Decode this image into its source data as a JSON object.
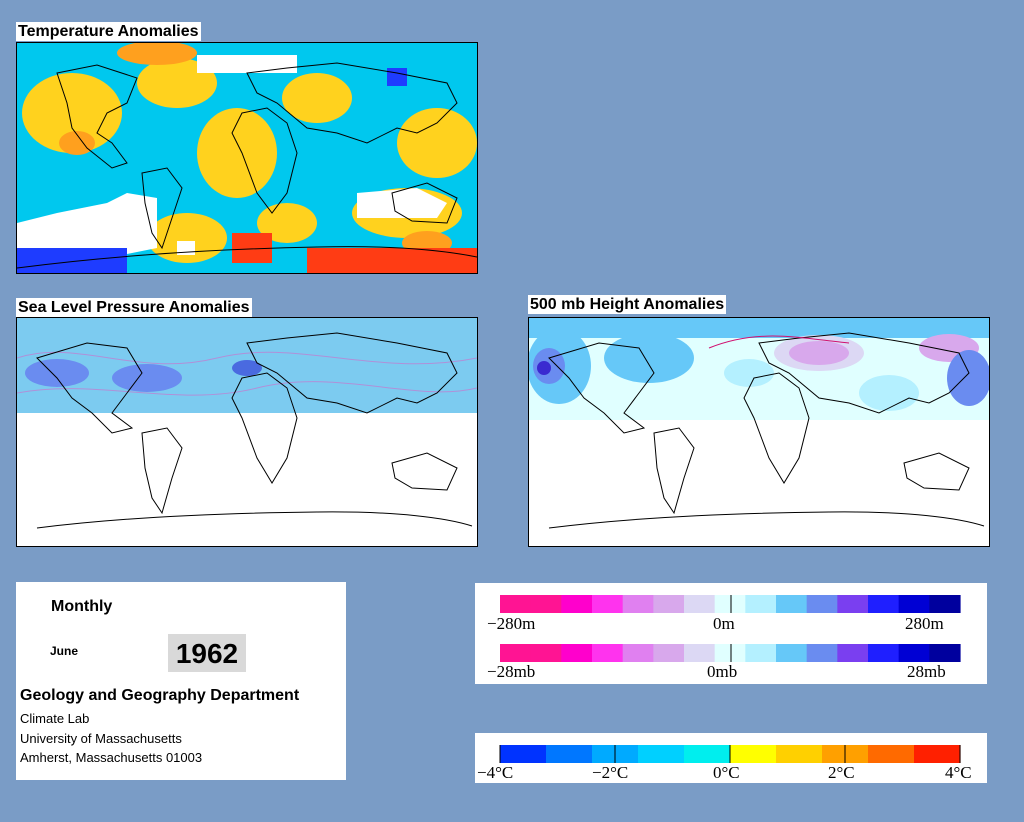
{
  "maps": {
    "temperature": {
      "title": "Temperature Anomalies"
    },
    "slp": {
      "title": "Sea Level Pressure Anomalies"
    },
    "height500": {
      "title": "500 mb Height Anomalies"
    }
  },
  "info": {
    "period": "Monthly",
    "month": "June",
    "year": "1962",
    "department": "Geology and Geography Department",
    "lines": [
      "Climate Lab",
      "University of Massachusetts",
      "Amherst, Massachusetts 01003"
    ]
  },
  "legend_height": {
    "labels": [
      "−280m",
      "0m",
      "280m"
    ],
    "colors": [
      "#ff1493",
      "#ff1493",
      "#ff00cc",
      "#ff33ee",
      "#e080f0",
      "#d8a8ec",
      "#dcd8f4",
      "#e0ffff",
      "#b4f0ff",
      "#66c8f8",
      "#6a8cf0",
      "#7a3ff0",
      "#1f1fff",
      "#0000d4",
      "#00009e"
    ]
  },
  "legend_slp": {
    "labels": [
      "−28mb",
      "0mb",
      "28mb"
    ],
    "colors": [
      "#ff1493",
      "#ff1493",
      "#ff00cc",
      "#ff33ee",
      "#e080f0",
      "#d8a8ec",
      "#dcd8f4",
      "#e0ffff",
      "#b4f0ff",
      "#66c8f8",
      "#6a8cf0",
      "#7a3ff0",
      "#1f1fff",
      "#0000d4",
      "#00009e"
    ]
  },
  "legend_temp": {
    "labels": [
      "−4°C",
      "−2°C",
      "0°C",
      "2°C",
      "4°C"
    ],
    "colors": [
      "#0033ff",
      "#0077ff",
      "#00aaff",
      "#00d0ff",
      "#00eeee",
      "#ffff00",
      "#ffd000",
      "#ffa000",
      "#ff6a00",
      "#ff2000"
    ]
  }
}
